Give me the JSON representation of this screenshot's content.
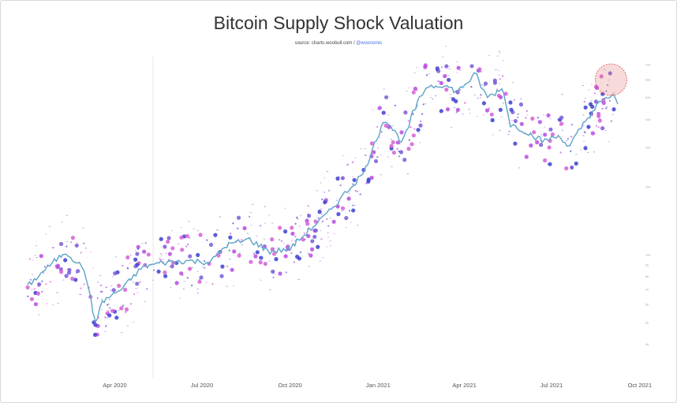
{
  "chart_data": {
    "type": "scatter",
    "title": "Bitcoin Supply Shock Valuation",
    "subtitle_source": "source: charts.woobull.com / ",
    "subtitle_handle": "@woonomic",
    "xlabel": "",
    "ylabel": "",
    "y_scale": "log",
    "ylim": [
      3000,
      70000
    ],
    "x_ticks": [
      "Apr 2020",
      "Jul 2020",
      "Oct 2020",
      "Jan 2021",
      "Apr 2021",
      "Jul 2021",
      "Oct 2021"
    ],
    "y_ticks": [
      {
        "label": "70k",
        "value": 70000
      },
      {
        "label": "60k",
        "value": 60000
      },
      {
        "label": "50k",
        "value": 50000
      },
      {
        "label": "40k",
        "value": 40000
      },
      {
        "label": "30k",
        "value": 30000
      },
      {
        "label": "20k",
        "value": 20000
      },
      {
        "label": "10k",
        "value": 10000
      },
      {
        "label": "9k",
        "value": 9000
      },
      {
        "label": "8k",
        "value": 8000
      },
      {
        "label": "7k",
        "value": 7000
      },
      {
        "label": "6k",
        "value": 6000
      },
      {
        "label": "5k",
        "value": 5000
      },
      {
        "label": "4k",
        "value": 4000
      }
    ],
    "price_line": {
      "color": "#5ba3c7",
      "x": [
        "2020-01-01",
        "2020-01-20",
        "2020-02-10",
        "2020-03-01",
        "2020-03-12",
        "2020-03-20",
        "2020-04-10",
        "2020-04-30",
        "2020-05-20",
        "2020-06-15",
        "2020-07-10",
        "2020-07-27",
        "2020-08-20",
        "2020-09-10",
        "2020-10-01",
        "2020-10-21",
        "2020-11-10",
        "2020-11-30",
        "2020-12-17",
        "2021-01-08",
        "2021-01-27",
        "2021-02-08",
        "2021-02-21",
        "2021-03-10",
        "2021-03-25",
        "2021-04-13",
        "2021-04-25",
        "2021-05-12",
        "2021-05-19",
        "2021-06-01",
        "2021-06-22",
        "2021-07-10",
        "2021-07-20",
        "2021-08-05",
        "2021-08-20",
        "2021-09-05",
        "2021-09-08"
      ],
      "y": [
        7200,
        8600,
        10300,
        8600,
        5000,
        6200,
        7100,
        8800,
        9200,
        9400,
        9250,
        11000,
        11700,
        10300,
        10600,
        12800,
        15300,
        19200,
        23000,
        40500,
        31500,
        44000,
        56000,
        57000,
        53000,
        63500,
        50000,
        55000,
        38000,
        36000,
        32000,
        33800,
        30000,
        39000,
        47000,
        52000,
        46500
      ]
    },
    "legend_entries": [],
    "highlight_circle": {
      "color": "#e06a6a"
    },
    "marker_colors": [
      "#d65fd6",
      "#3b3fd0",
      "#7a5ad8",
      "#b64be0"
    ]
  }
}
